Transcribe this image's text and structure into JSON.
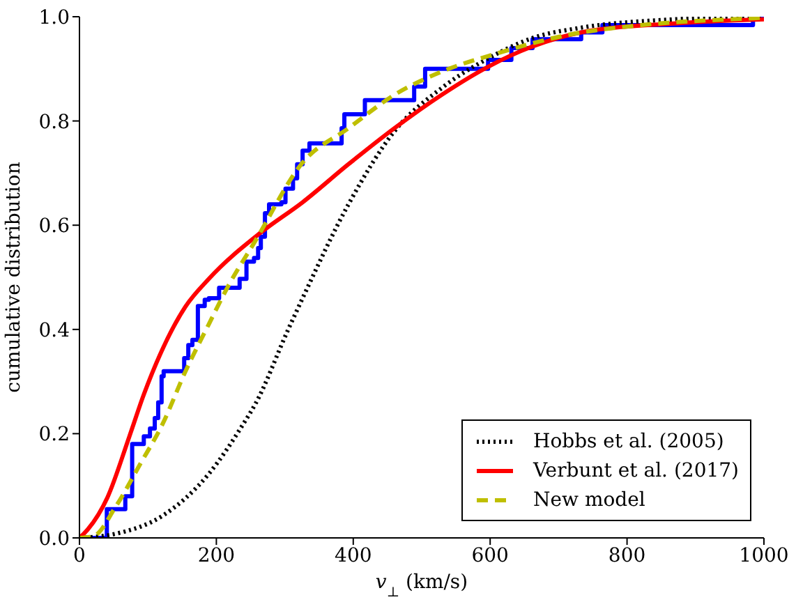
{
  "chart_data": {
    "type": "line",
    "xlabel": "v$_{⊥}$ (km/s)",
    "ylabel": "cumulative distribution",
    "xlim": [
      0,
      1000
    ],
    "ylim": [
      0,
      1.0
    ],
    "xticks": [
      0,
      200,
      400,
      600,
      800,
      1000
    ],
    "yticks": [
      {
        "value": 0,
        "label": "0.0"
      },
      0.2,
      0.4,
      0.6,
      0.8,
      {
        "value": 1,
        "label": "1.0"
      }
    ],
    "grid": false,
    "legend": "bottom right",
    "series": [
      {
        "type": "step",
        "color": "#0000ff",
        "line_style": "solid",
        "x": [
          16,
          40,
          57,
          67,
          77,
          94,
          103,
          110,
          115,
          120,
          123,
          128,
          153,
          159,
          165,
          173,
          183,
          189,
          204,
          220,
          234,
          244,
          255,
          261,
          265,
          271,
          277,
          295,
          301,
          312,
          318,
          326,
          336,
          377,
          383,
          387,
          409,
          417,
          481,
          489,
          505,
          597,
          631,
          662,
          733,
          764,
          980,
          984,
          1000
        ],
        "values": [
          0,
          0.055,
          0.055,
          0.08,
          0.18,
          0.195,
          0.21,
          0.23,
          0.26,
          0.31,
          0.32,
          0.32,
          0.345,
          0.37,
          0.38,
          0.445,
          0.457,
          0.46,
          0.48,
          0.48,
          0.497,
          0.53,
          0.537,
          0.556,
          0.578,
          0.623,
          0.64,
          0.644,
          0.67,
          0.69,
          0.717,
          0.743,
          0.757,
          0.757,
          0.786,
          0.813,
          0.813,
          0.84,
          0.84,
          0.866,
          0.9,
          0.917,
          0.94,
          0.957,
          0.97,
          0.984,
          0.984,
          1.0,
          1.0
        ]
      },
      {
        "name": "Hobbs et al. (2005)",
        "color": "#000000",
        "line_style": "dotted",
        "x": [
          0,
          53,
          122,
          189,
          240,
          257,
          305,
          326,
          393,
          460,
          529,
          597,
          664,
          733,
          868,
          1000
        ],
        "values": [
          0,
          0.008,
          0.043,
          0.123,
          0.22,
          0.257,
          0.4,
          0.46,
          0.64,
          0.78,
          0.863,
          0.92,
          0.96,
          0.979,
          0.995,
          1.0
        ]
      },
      {
        "name": "Verbunt et al. (2017)",
        "color": "#ff0000",
        "line_style": "solid",
        "x": [
          0,
          12,
          41,
          73,
          94,
          122,
          155,
          189,
          265,
          326,
          393,
          460,
          529,
          597,
          664,
          733,
          868,
          1000
        ],
        "values": [
          0,
          0.016,
          0.078,
          0.195,
          0.275,
          0.364,
          0.444,
          0.497,
          0.586,
          0.644,
          0.717,
          0.786,
          0.85,
          0.904,
          0.944,
          0.97,
          0.987,
          0.995
        ]
      },
      {
        "name": "New model",
        "color": "#bfbf00",
        "line_style": "dashed",
        "x": [
          0,
          20,
          53,
          88,
          122,
          155,
          189,
          216,
          257,
          326,
          393,
          460,
          530,
          611,
          713,
          821,
          984,
          1000
        ],
        "values": [
          0,
          0.003,
          0.06,
          0.14,
          0.22,
          0.32,
          0.41,
          0.48,
          0.57,
          0.72,
          0.786,
          0.85,
          0.895,
          0.93,
          0.965,
          0.984,
          0.997,
          0.998
        ]
      }
    ]
  }
}
